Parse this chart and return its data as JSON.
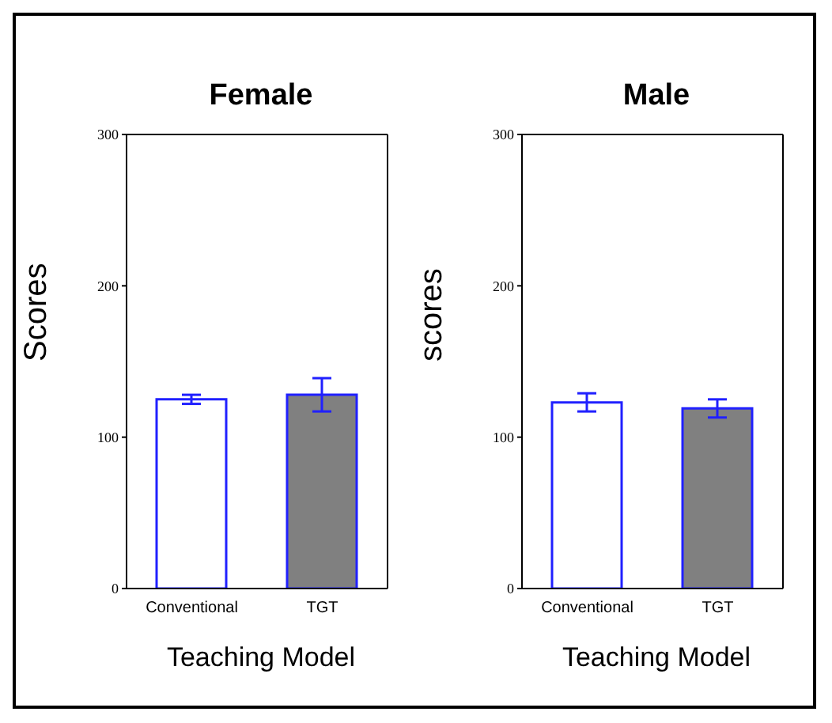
{
  "chart_data": [
    {
      "type": "bar",
      "title": "Female",
      "xlabel": "Teaching Model",
      "ylabel": "Scores",
      "categories": [
        "Conventional",
        "TGT"
      ],
      "values": [
        125,
        128
      ],
      "errors": [
        3,
        11
      ],
      "colors": [
        "#ffffff",
        "#808080"
      ],
      "ylim": [
        0,
        300
      ],
      "yticks": [
        0,
        100,
        200,
        300
      ],
      "grid": false,
      "legend": false
    },
    {
      "type": "bar",
      "title": "Male",
      "xlabel": "Teaching Model",
      "ylabel": "scores",
      "categories": [
        "Conventional",
        "TGT"
      ],
      "values": [
        123,
        119
      ],
      "errors": [
        6,
        6
      ],
      "colors": [
        "#ffffff",
        "#808080"
      ],
      "ylim": [
        0,
        300
      ],
      "yticks": [
        0,
        100,
        200,
        300
      ],
      "grid": false,
      "legend": false
    }
  ]
}
